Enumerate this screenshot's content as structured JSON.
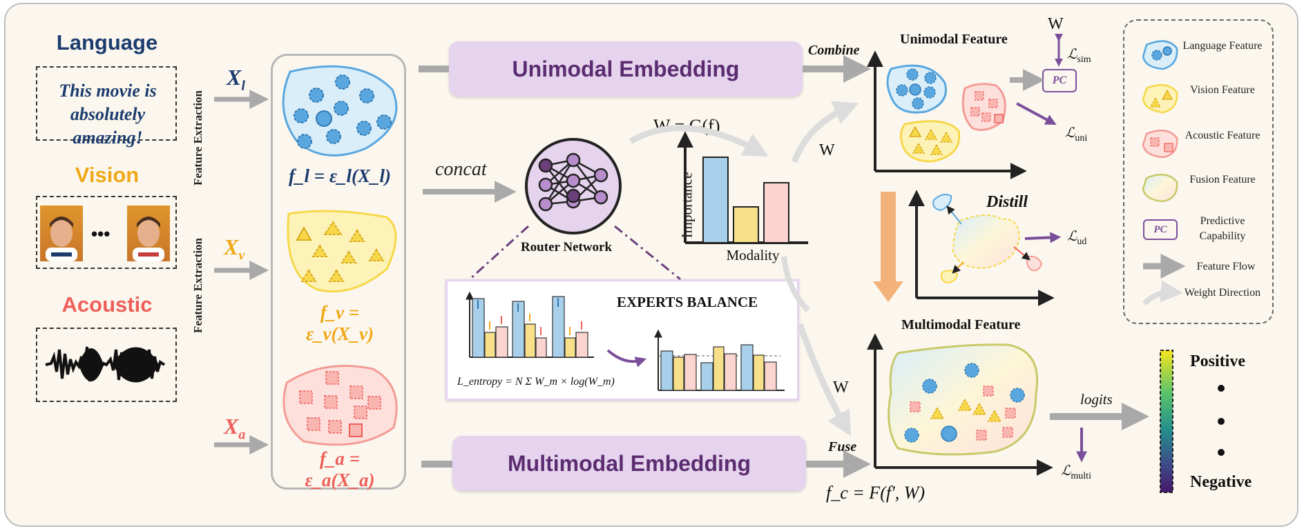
{
  "modalities": {
    "language": {
      "title": "Language",
      "sentence": "This movie is absolutely amazing!",
      "input": "X",
      "input_sub": "l",
      "formula": "f_l = ε_l(X_l)",
      "color": "#1c3c6e"
    },
    "vision": {
      "title": "Vision",
      "input": "X",
      "input_sub": "v",
      "formula": "f_v = ε_v(X_v)",
      "color": "#f0a818"
    },
    "acoustic": {
      "title": "Acoustic",
      "input": "X",
      "input_sub": "a",
      "formula": "f_a = ε_a(X_a)",
      "color": "#ee5f59"
    }
  },
  "ellipsis_dots": "•••",
  "feature_extraction": "Feature Extraction",
  "embeddings": {
    "unimodal": "Unimodal Embedding",
    "multimodal": "Multimodal Embedding"
  },
  "concat": "concat",
  "router": {
    "label": "Router Network",
    "weight_formula": "W = G(f)"
  },
  "importance_chart": {
    "ylabel": "Importance",
    "xlabel": "Modality"
  },
  "experts_balance": {
    "title": "EXPERTS BALANCE",
    "entropy_loss": "L_entropy = N Σ W_m × log(W_m)"
  },
  "labels": {
    "combine": "Combine",
    "fuse": "Fuse",
    "distill": "Distill",
    "logits": "logits",
    "w": "W"
  },
  "unimodal_feature": "Unimodal Feature",
  "multimodal_feature": "Multimodal Feature",
  "pc": "PC",
  "fusion_formula": "f_c = F(f′, W)",
  "losses": {
    "sim": "sim",
    "uni": "uni",
    "ud": "ud",
    "multi": "multi"
  },
  "scale": {
    "positive": "Positive",
    "negative": "Negative"
  },
  "legend": {
    "language": "Language Feature",
    "vision": "Vision Feature",
    "acoustic": "Acoustic Feature",
    "fusion": "Fusion Feature",
    "pc": "Predictive Capability",
    "flow": "Feature Flow",
    "weight": "Weight Direction"
  },
  "colors": {
    "language": "#5aa7df",
    "vision": "#f6d84a",
    "acoustic": "#f49b96",
    "purple": "#7a4f9a",
    "gray_arrow": "#a9a9a9",
    "orange_arrow": "#f3b27a"
  }
}
